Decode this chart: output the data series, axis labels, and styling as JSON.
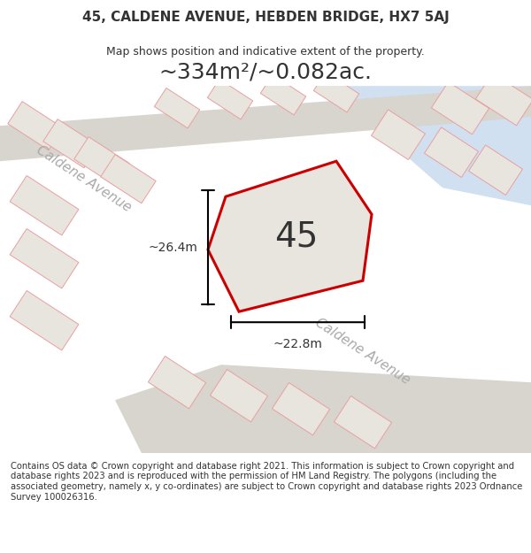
{
  "title_line1": "45, CALDENE AVENUE, HEBDEN BRIDGE, HX7 5AJ",
  "title_line2": "Map shows position and indicative extent of the property.",
  "area_text": "~334m²/~0.082ac.",
  "number_label": "45",
  "dim_horizontal": "~22.8m",
  "dim_vertical": "~26.4m",
  "street_label_left": "Caldene Avenue",
  "street_label_bottom": "Caldene Avenue",
  "footer_text": "Contains OS data © Crown copyright and database right 2021. This information is subject to Crown copyright and database rights 2023 and is reproduced with the permission of HM Land Registry. The polygons (including the associated geometry, namely x, y co-ordinates) are subject to Crown copyright and database rights 2023 Ordnance Survey 100026316.",
  "bg_color": "#f0ede8",
  "map_bg": "#f0ede8",
  "road_color": "#d8d4ce",
  "road_border_color": "#cccccc",
  "property_fill": "#e8e4de",
  "property_outline": "#cc0000",
  "other_property_outline": "#e8a0a0",
  "water_color": "#d0e0f0",
  "footer_bg": "#ffffff",
  "title_bg": "#ffffff"
}
